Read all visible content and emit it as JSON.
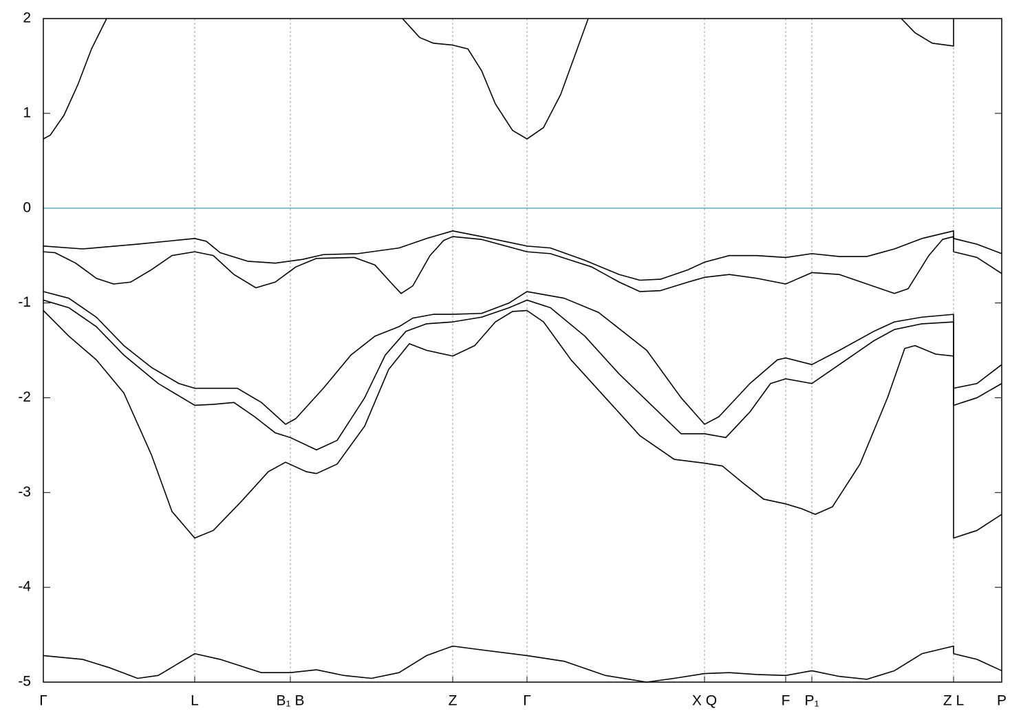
{
  "chart_data": {
    "type": "line",
    "xlim": [
      0,
      1393
    ],
    "ylim": [
      -5,
      2
    ],
    "yticks": [
      -5,
      -4,
      -3,
      -2,
      -1,
      0,
      1,
      2
    ],
    "xticks": [
      {
        "value": 0,
        "label": "Γ"
      },
      {
        "value": 220,
        "label": "L"
      },
      {
        "value": 359,
        "label": "B₁ B"
      },
      {
        "value": 595,
        "label": "Z"
      },
      {
        "value": 703,
        "label": "Γ"
      },
      {
        "value": 961,
        "label": "X Q"
      },
      {
        "value": 1079,
        "label": "F"
      },
      {
        "value": 1117,
        "label": "P₁"
      },
      {
        "value": 1323,
        "label": "Z L"
      },
      {
        "value": 1393,
        "label": "P"
      }
    ],
    "xgrid": true,
    "series": [
      {
        "color": "#000000",
        "x": [
          0,
          10,
          30,
          50,
          70,
          92,
          300,
          522,
          547,
          567,
          595,
          617,
          637,
          657,
          682,
          703,
          727,
          752,
          772,
          792,
          1000,
          1247,
          1267,
          1292,
          1323,
          1323
        ],
        "values": [
          0.73,
          0.77,
          0.98,
          1.3,
          1.68,
          2.0,
          null,
          2.0,
          1.8,
          1.74,
          1.72,
          1.68,
          1.45,
          1.1,
          0.82,
          0.73,
          0.85,
          1.2,
          1.6,
          2.0,
          null,
          2.0,
          1.85,
          1.74,
          1.71,
          2.0
        ]
      },
      {
        "color": "#000000",
        "x": [
          0,
          57,
          137,
          220,
          237,
          257,
          297,
          337,
          377,
          407,
          457,
          517,
          557,
          595,
          637,
          703,
          737,
          787,
          837,
          867,
          897,
          937,
          961,
          997,
          1037,
          1079,
          1117,
          1157,
          1197,
          1237,
          1277,
          1323,
          1323,
          1357,
          1393
        ],
        "values": [
          -0.4,
          -0.43,
          -0.38,
          -0.32,
          -0.35,
          -0.47,
          -0.56,
          -0.58,
          -0.54,
          -0.49,
          -0.48,
          -0.42,
          -0.32,
          -0.24,
          -0.3,
          -0.4,
          -0.42,
          -0.55,
          -0.7,
          -0.76,
          -0.75,
          -0.65,
          -0.57,
          -0.5,
          -0.5,
          -0.52,
          -0.48,
          -0.51,
          -0.51,
          -0.43,
          -0.32,
          -0.24,
          -0.32,
          -0.38,
          -0.48
        ]
      },
      {
        "color": "#000000",
        "x": [
          0,
          17,
          47,
          77,
          102,
          127,
          157,
          187,
          220,
          247,
          277,
          309,
          337,
          367,
          397,
          452,
          482,
          507,
          520,
          537,
          562,
          582,
          595,
          637,
          703,
          737,
          797,
          837,
          867,
          897,
          937,
          961,
          997,
          1037,
          1079,
          1117,
          1157,
          1197,
          1237,
          1257,
          1287,
          1307,
          1323,
          1323,
          1357,
          1393
        ],
        "values": [
          -0.46,
          -0.47,
          -0.58,
          -0.74,
          -0.8,
          -0.78,
          -0.65,
          -0.5,
          -0.46,
          -0.5,
          -0.7,
          -0.84,
          -0.78,
          -0.62,
          -0.53,
          -0.52,
          -0.6,
          -0.8,
          -0.9,
          -0.82,
          -0.5,
          -0.34,
          -0.3,
          -0.33,
          -0.46,
          -0.48,
          -0.62,
          -0.78,
          -0.88,
          -0.87,
          -0.78,
          -0.73,
          -0.7,
          -0.74,
          -0.8,
          -0.68,
          -0.7,
          -0.8,
          -0.9,
          -0.85,
          -0.5,
          -0.33,
          -0.3,
          -0.46,
          -0.52,
          -0.69
        ]
      },
      {
        "color": "#000000",
        "x": [
          0,
          37,
          77,
          117,
          157,
          197,
          220,
          282,
          317,
          352,
          367,
          407,
          447,
          482,
          517,
          537,
          567,
          595,
          637,
          677,
          703,
          757,
          807,
          877,
          927,
          961,
          982,
          1027,
          1067,
          1079,
          1117,
          1157,
          1207,
          1237,
          1277,
          1323,
          1323,
          1357,
          1393
        ],
        "values": [
          -0.88,
          -0.95,
          -1.15,
          -1.45,
          -1.68,
          -1.85,
          -1.9,
          -1.9,
          -2.05,
          -2.28,
          -2.22,
          -1.9,
          -1.55,
          -1.35,
          -1.25,
          -1.16,
          -1.12,
          -1.12,
          -1.11,
          -1.0,
          -0.88,
          -0.95,
          -1.1,
          -1.5,
          -2.0,
          -2.28,
          -2.2,
          -1.85,
          -1.6,
          -1.58,
          -1.65,
          -1.5,
          -1.3,
          -1.2,
          -1.15,
          -1.12,
          -1.9,
          -1.85,
          -1.65
        ]
      },
      {
        "color": "#000000",
        "x": [
          0,
          37,
          77,
          117,
          167,
          220,
          247,
          277,
          307,
          337,
          359,
          397,
          427,
          467,
          497,
          527,
          557,
          595,
          637,
          677,
          703,
          737,
          787,
          837,
          887,
          927,
          961,
          992,
          1027,
          1057,
          1079,
          1117,
          1157,
          1207,
          1237,
          1277,
          1323,
          1323,
          1357,
          1393
        ],
        "values": [
          -0.97,
          -1.05,
          -1.25,
          -1.55,
          -1.85,
          -2.08,
          -2.07,
          -2.05,
          -2.2,
          -2.37,
          -2.42,
          -2.55,
          -2.45,
          -2.0,
          -1.55,
          -1.3,
          -1.22,
          -1.2,
          -1.15,
          -1.05,
          -0.97,
          -1.05,
          -1.35,
          -1.75,
          -2.1,
          -2.38,
          -2.38,
          -2.42,
          -2.15,
          -1.85,
          -1.8,
          -1.85,
          -1.65,
          -1.4,
          -1.28,
          -1.22,
          -1.2,
          -2.08,
          -2.0,
          -1.85
        ]
      },
      {
        "color": "#000000",
        "x": [
          0,
          37,
          77,
          117,
          157,
          187,
          220,
          247,
          287,
          327,
          352,
          382,
          397,
          427,
          467,
          502,
          532,
          557,
          595,
          627,
          657,
          682,
          703,
          727,
          767,
          817,
          867,
          917,
          961,
          987,
          1017,
          1047,
          1079,
          1102,
          1122,
          1147,
          1187,
          1227,
          1252,
          1267,
          1297,
          1323,
          1323,
          1357,
          1393
        ],
        "values": [
          -1.08,
          -1.35,
          -1.6,
          -1.95,
          -2.6,
          -3.2,
          -3.48,
          -3.4,
          -3.1,
          -2.78,
          -2.68,
          -2.78,
          -2.8,
          -2.7,
          -2.3,
          -1.7,
          -1.43,
          -1.5,
          -1.56,
          -1.45,
          -1.2,
          -1.09,
          -1.08,
          -1.2,
          -1.6,
          -2.0,
          -2.4,
          -2.65,
          -2.69,
          -2.72,
          -2.9,
          -3.07,
          -3.12,
          -3.17,
          -3.23,
          -3.15,
          -2.7,
          -2.0,
          -1.48,
          -1.45,
          -1.54,
          -1.56,
          -3.48,
          -3.4,
          -3.23
        ]
      },
      {
        "color": "#000000",
        "x": [
          0,
          57,
          97,
          137,
          167,
          220,
          257,
          317,
          359,
          397,
          437,
          477,
          517,
          557,
          595,
          637,
          703,
          757,
          817,
          877,
          917,
          961,
          997,
          1037,
          1079,
          1117,
          1157,
          1197,
          1237,
          1277,
          1323,
          1323,
          1357,
          1393
        ],
        "values": [
          -4.72,
          -4.76,
          -4.85,
          -4.96,
          -4.93,
          -4.7,
          -4.76,
          -4.9,
          -4.9,
          -4.87,
          -4.93,
          -4.96,
          -4.9,
          -4.72,
          -4.62,
          -4.66,
          -4.72,
          -4.78,
          -4.93,
          -5.0,
          -4.96,
          -4.91,
          -4.9,
          -4.92,
          -4.93,
          -4.88,
          -4.94,
          -4.97,
          -4.88,
          -4.7,
          -4.62,
          -4.7,
          -4.76,
          -4.88
        ]
      },
      {
        "color": "#5fb0cc",
        "x": [
          0,
          1393
        ],
        "values": [
          0,
          0
        ]
      }
    ]
  }
}
